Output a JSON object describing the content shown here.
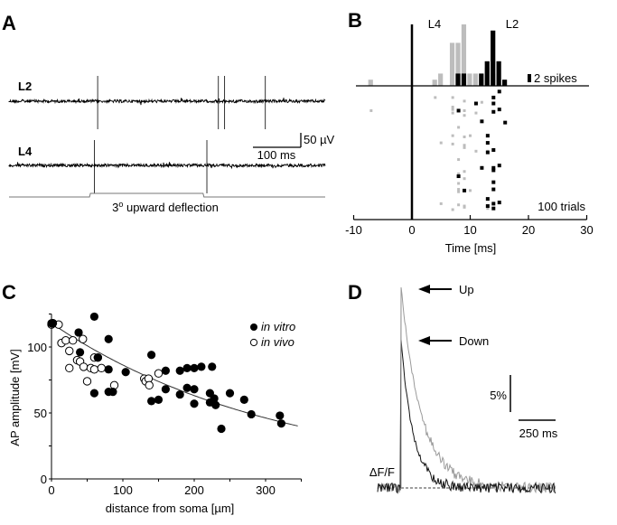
{
  "figure": {
    "panels": [
      "A",
      "B",
      "C",
      "D"
    ]
  },
  "chart_data": [
    {
      "panel": "A",
      "type": "line",
      "title": "",
      "traces": [
        {
          "name": "L2",
          "spike_times_ms": [
            185,
            437,
            450,
            535
          ]
        },
        {
          "name": "L4",
          "spike_times_ms": [
            178,
            413
          ]
        }
      ],
      "stimulus": {
        "label": "3° upward deflection",
        "label_base": "3",
        "label_sup": "o",
        "label_rest": " upward deflection",
        "onset_ms": 168,
        "offset_ms": 405
      },
      "scale_bar": {
        "voltage_label": "50 µV",
        "time_label": "100 ms",
        "voltage_uV": 50,
        "time_ms": 100
      },
      "total_duration_ms": 660
    },
    {
      "panel": "B",
      "type": "bar",
      "title": "",
      "xlabel": "Time [ms]",
      "xlim": [
        -10,
        30
      ],
      "xticks": [
        -10,
        0,
        10,
        20,
        30
      ],
      "xtick_labels": [
        "-10",
        "0",
        "10",
        "20",
        "30"
      ],
      "histogram_scale_label": "2 spikes",
      "raster_label": "100 trials",
      "series": [
        {
          "name": "L4",
          "color": "#bdbdbd",
          "bins": [
            -7,
            4,
            5,
            7,
            8,
            9,
            10,
            11,
            12,
            13,
            14
          ],
          "counts": [
            1,
            1,
            2,
            7,
            7,
            10,
            2,
            2,
            1,
            3,
            2
          ]
        },
        {
          "name": "L2",
          "color": "#000000",
          "bins": [
            8,
            9,
            12,
            13,
            14,
            15,
            16
          ],
          "counts": [
            2,
            2,
            2,
            4,
            9,
            4,
            1
          ]
        }
      ],
      "raster": {
        "L4": [
          [
            4,
            0.06
          ],
          [
            7,
            0.06
          ],
          [
            9,
            0.09
          ],
          [
            12,
            0.1
          ],
          [
            7,
            0.14
          ],
          [
            7,
            0.16
          ],
          [
            9,
            0.17
          ],
          [
            7,
            0.19
          ],
          [
            9,
            0.21
          ],
          [
            -7,
            0.17
          ],
          [
            11,
            0.19
          ],
          [
            8,
            0.31
          ],
          [
            7,
            0.38
          ],
          [
            9,
            0.39
          ],
          [
            10,
            0.38
          ],
          [
            5,
            0.44
          ],
          [
            7,
            0.45
          ],
          [
            9,
            0.46
          ],
          [
            9,
            0.48
          ],
          [
            11,
            0.51
          ],
          [
            13,
            0.51
          ],
          [
            8,
            0.58
          ],
          [
            9,
            0.68
          ],
          [
            8,
            0.7
          ],
          [
            9,
            0.74
          ],
          [
            8,
            0.78
          ],
          [
            8,
            0.83
          ],
          [
            8,
            0.85
          ],
          [
            10,
            0.84
          ],
          [
            5,
            0.95
          ],
          [
            8,
            0.96
          ],
          [
            9,
            0.97
          ],
          [
            9,
            0.98
          ],
          [
            7,
            1.0
          ],
          [
            13,
            0.99
          ]
        ],
        "L2": [
          [
            15,
            0.01
          ],
          [
            14,
            0.06
          ],
          [
            11,
            0.11
          ],
          [
            14,
            0.11
          ],
          [
            15,
            0.16
          ],
          [
            8,
            0.17
          ],
          [
            14,
            0.18
          ],
          [
            12,
            0.26
          ],
          [
            16,
            0.27
          ],
          [
            13,
            0.38
          ],
          [
            13,
            0.44
          ],
          [
            14,
            0.5
          ],
          [
            13,
            0.52
          ],
          [
            15,
            0.63
          ],
          [
            12,
            0.65
          ],
          [
            14,
            0.65
          ],
          [
            14,
            0.67
          ],
          [
            8,
            0.72
          ],
          [
            14,
            0.77
          ],
          [
            14,
            0.83
          ],
          [
            9,
            0.84
          ],
          [
            13,
            0.91
          ],
          [
            15,
            0.94
          ],
          [
            14,
            0.95
          ],
          [
            13,
            0.97
          ],
          [
            14,
            0.99
          ]
        ]
      },
      "legend": [
        "L4",
        "L2"
      ]
    },
    {
      "panel": "C",
      "type": "scatter",
      "title": "",
      "xlabel": "distance from soma [µm]",
      "ylabel": "AP amplitude [mV]",
      "xlim": [
        0,
        350
      ],
      "ylim": [
        0,
        125
      ],
      "xticks": [
        0,
        100,
        200,
        300
      ],
      "yticks": [
        0,
        50,
        100
      ],
      "legend": {
        "position": "top-right",
        "entries": [
          "in vitro",
          "in vivo"
        ]
      },
      "series": [
        {
          "name": "in vitro",
          "marker": "filled-circle",
          "x": [
            0,
            2,
            38,
            40,
            60,
            60,
            65,
            80,
            80,
            80,
            86,
            104,
            140,
            140,
            150,
            160,
            160,
            180,
            180,
            190,
            190,
            200,
            200,
            200,
            210,
            222,
            222,
            225,
            228,
            230,
            238,
            250,
            270,
            280,
            320,
            322
          ],
          "y": [
            118,
            118,
            111,
            96,
            123,
            65,
            92,
            106,
            83,
            66,
            66,
            81,
            94,
            59,
            60,
            82,
            68,
            82,
            64,
            84,
            69,
            84,
            68,
            57,
            85,
            65,
            58,
            85,
            61,
            56,
            38,
            65,
            60,
            49,
            48,
            42
          ]
        },
        {
          "name": "in vivo",
          "marker": "open-circle",
          "x": [
            0,
            2,
            10,
            14,
            20,
            25,
            25,
            30,
            36,
            40,
            44,
            45,
            50,
            55,
            60,
            60,
            65,
            70,
            88,
            130,
            132,
            136,
            137,
            150
          ],
          "y": [
            117,
            118,
            117,
            103,
            105,
            97,
            84,
            105,
            90,
            89,
            106,
            85,
            74,
            84,
            92,
            83,
            92,
            84,
            71,
            76,
            74,
            76,
            71,
            80
          ]
        }
      ],
      "fit": {
        "type": "exponential",
        "y0": 118,
        "length_constant_um": 320,
        "x_range": [
          0,
          345
        ]
      }
    },
    {
      "panel": "D",
      "type": "line",
      "title": "",
      "ylabel": "ΔF/F",
      "series": [
        {
          "name": "Up",
          "color": "#9a9a9a",
          "peak_percent": 21.7,
          "decay_ms": 250
        },
        {
          "name": "Down",
          "color": "#111111",
          "peak_percent": 16.0,
          "decay_ms": 150
        }
      ],
      "annotations": [
        {
          "text": "Up",
          "arrow": "left"
        },
        {
          "text": "Down",
          "arrow": "left"
        }
      ],
      "scale_bar": {
        "percent_label": "5%",
        "time_label": "250 ms",
        "percent": 5,
        "time_ms": 250
      },
      "baseline": "dashed"
    }
  ]
}
